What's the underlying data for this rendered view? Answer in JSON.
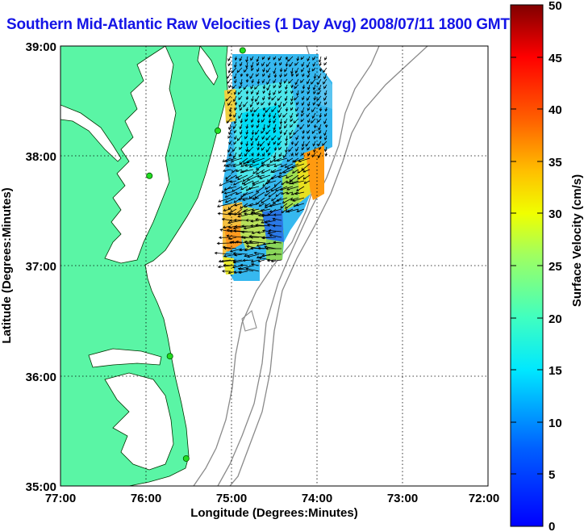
{
  "title": "Southern Mid-Atlantic Raw Velocities (1 Day Avg) 2008/07/11 1800 GMT",
  "xlabel": "Longitude (Degrees:Minutes)",
  "ylabel": "Latitude (Degrees:Minutes)",
  "x_ticks": [
    "77:00",
    "76:00",
    "75:00",
    "74:00",
    "73:00",
    "72:00"
  ],
  "y_ticks": [
    "39:00",
    "38:00",
    "37:00",
    "36:00",
    "35:00"
  ],
  "colorbar": {
    "label": "Surface Velocity (cm/s)",
    "ticks": [
      "50",
      "45",
      "40",
      "35",
      "30",
      "25",
      "20",
      "15",
      "10",
      "5",
      "0"
    ],
    "range": [
      0,
      50
    ]
  },
  "map": {
    "lon_range": [
      -77,
      -72
    ],
    "lat_range": [
      35,
      39
    ],
    "land_color": "#5af5a5",
    "water_color": "#ffffff",
    "grid": true,
    "stations": [
      {
        "lon": -74.87,
        "lat": 38.96
      },
      {
        "lon": -75.16,
        "lat": 38.23
      },
      {
        "lon": -75.96,
        "lat": 37.82
      },
      {
        "lon": -75.72,
        "lat": 36.18
      },
      {
        "lon": -75.53,
        "lat": 35.25
      }
    ]
  }
}
